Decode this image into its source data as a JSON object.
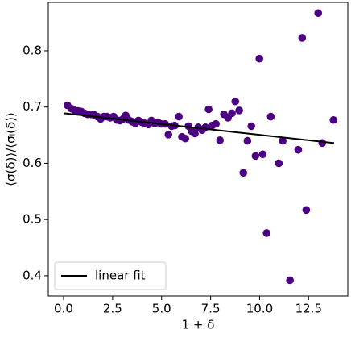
{
  "chart_data": {
    "type": "scatter",
    "xlabel": "1 + δ",
    "ylabel": "⟨σ(δ)⟩/⟨σₗ(δ)⟩",
    "xlim": [
      -0.78,
      14.5
    ],
    "ylim": [
      0.364,
      0.886
    ],
    "xticks": [
      {
        "value": 0,
        "label": "0.0"
      },
      2.5,
      {
        "value": 5,
        "label": "5.0"
      },
      7.5,
      {
        "value": 10,
        "label": "10.0"
      },
      12.5
    ],
    "yticks": [
      0.4,
      0.5,
      0.6,
      0.7,
      0.8
    ],
    "legend": "lower left",
    "series": [
      {
        "type": "scatter",
        "color": "#4b0082",
        "x": [
          0.2,
          0.41,
          0.58,
          0.74,
          0.9,
          1.07,
          1.23,
          1.4,
          1.56,
          1.73,
          1.89,
          2.06,
          2.22,
          2.38,
          2.55,
          2.71,
          2.88,
          3.04,
          3.17,
          3.33,
          3.5,
          3.66,
          3.82,
          3.99,
          4.15,
          4.32,
          4.48,
          4.65,
          4.81,
          4.98,
          5.18,
          5.35,
          5.51,
          5.67,
          5.88,
          6.04,
          6.21,
          6.37,
          6.54,
          6.7,
          6.87,
          7.07,
          7.24,
          7.4,
          7.57,
          7.77,
          7.98,
          8.18,
          8.39,
          8.59,
          8.76,
          8.96,
          9.17,
          9.38,
          9.58,
          9.79,
          9.99,
          10.16,
          10.36,
          10.57,
          10.98,
          11.18,
          11.55,
          11.97,
          12.17,
          12.38,
          12.99,
          13.2,
          13.77
        ],
        "values": [
          0.703,
          0.697,
          0.694,
          0.693,
          0.692,
          0.689,
          0.687,
          0.687,
          0.686,
          0.683,
          0.679,
          0.683,
          0.683,
          0.681,
          0.683,
          0.677,
          0.676,
          0.679,
          0.685,
          0.677,
          0.674,
          0.671,
          0.676,
          0.673,
          0.671,
          0.669,
          0.676,
          0.671,
          0.673,
          0.67,
          0.67,
          0.651,
          0.666,
          0.667,
          0.683,
          0.647,
          0.644,
          0.666,
          0.657,
          0.653,
          0.664,
          0.659,
          0.664,
          0.696,
          0.667,
          0.67,
          0.641,
          0.687,
          0.681,
          0.689,
          0.71,
          0.694,
          0.583,
          0.64,
          0.666,
          0.613,
          0.786,
          0.616,
          0.476,
          0.683,
          0.6,
          0.64,
          0.392,
          0.624,
          0.823,
          0.517,
          0.867,
          0.636,
          0.677
        ]
      },
      {
        "type": "line",
        "name": "linear fit",
        "color": "#000000",
        "x": [
          0,
          13.8
        ],
        "values": [
          0.689,
          0.636
        ]
      }
    ]
  }
}
